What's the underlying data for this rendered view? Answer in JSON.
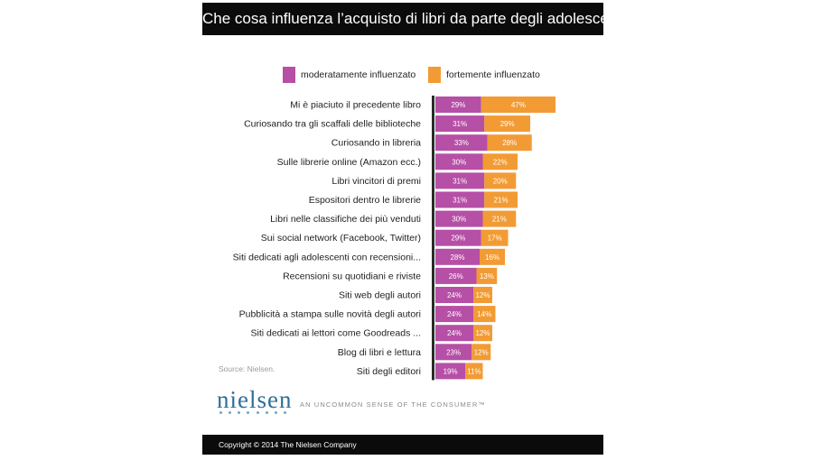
{
  "colors": {
    "moderate": "#b64fa6",
    "strong": "#f29b34",
    "axis": "#2b2b2b"
  },
  "chart_data": {
    "type": "bar",
    "orientation": "horizontal",
    "stacked": true,
    "title": "Che cosa influenza l’acquisto di libri da parte degli adolescenti",
    "legend_position": "top",
    "categories": [
      "Mi è piaciuto il precedente libro",
      "Curiosando tra gli scaffali delle biblioteche",
      "Curiosando in libreria",
      "Sulle librerie online (Amazon ecc.)",
      "Libri vincitori di premi",
      "Espositori dentro le librerie",
      "Libri nelle classifiche dei più venduti",
      "Sui social network (Facebook, Twitter)",
      "Siti dedicati agli adolescenti con recensioni...",
      "Recensioni su quotidiani e riviste",
      "Siti web degli autori",
      "Pubblicità a stampa sulle novità degli autori",
      "Siti dedicati ai lettori come Goodreads ...",
      "Blog di libri e lettura",
      "Siti degli editori"
    ],
    "series": [
      {
        "name": "moderatamente influenzato",
        "values": [
          29,
          31,
          33,
          30,
          31,
          31,
          30,
          29,
          28,
          26,
          24,
          24,
          24,
          23,
          19
        ]
      },
      {
        "name": "fortemente influenzato",
        "values": [
          47,
          29,
          28,
          22,
          20,
          21,
          21,
          17,
          16,
          13,
          12,
          14,
          12,
          12,
          11
        ]
      }
    ],
    "value_suffix": "%"
  },
  "source": "Source: Nielsen.",
  "brand": {
    "logo": "nielsen",
    "tagline": "AN UNCOMMON SENSE OF THE CONSUMER™"
  },
  "footer": "Copyright © 2014 The Nielsen Company"
}
